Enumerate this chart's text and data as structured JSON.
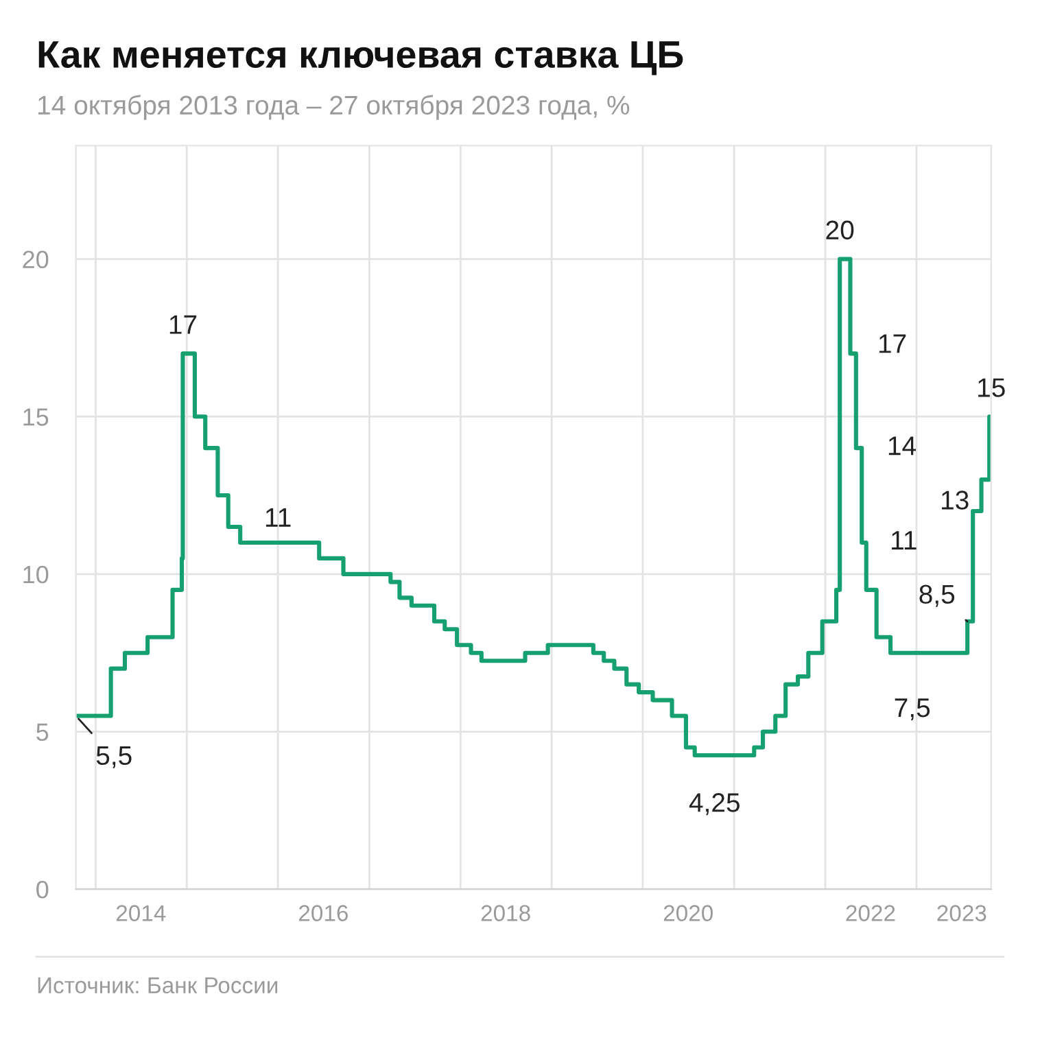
{
  "chart_data": {
    "type": "step",
    "title": "Как меняется ключевая ставка ЦБ",
    "subtitle": "14 октября 2013 года – 27 октября 2023 года, %",
    "x": [
      "2013-10-14",
      "2014-03-03",
      "2014-04-28",
      "2014-07-28",
      "2014-11-05",
      "2014-12-12",
      "2014-12-16",
      "2015-02-02",
      "2015-03-16",
      "2015-05-05",
      "2015-06-16",
      "2015-08-03",
      "2016-06-14",
      "2016-09-19",
      "2017-03-27",
      "2017-05-02",
      "2017-06-19",
      "2017-09-18",
      "2017-10-30",
      "2017-12-18",
      "2018-02-12",
      "2018-03-26",
      "2018-09-17",
      "2018-12-17",
      "2019-06-17",
      "2019-07-29",
      "2019-09-09",
      "2019-10-28",
      "2019-12-16",
      "2020-02-10",
      "2020-04-27",
      "2020-06-22",
      "2020-07-27",
      "2021-03-22",
      "2021-04-26",
      "2021-06-15",
      "2021-07-26",
      "2021-09-13",
      "2021-10-25",
      "2021-12-20",
      "2022-02-14",
      "2022-02-28",
      "2022-04-11",
      "2022-05-04",
      "2022-05-27",
      "2022-06-14",
      "2022-07-25",
      "2022-09-19",
      "2023-07-24",
      "2023-08-15",
      "2023-09-18",
      "2023-10-20",
      "2023-10-27"
    ],
    "series": [
      {
        "color": "#17a06f",
        "values": [
          5.5,
          7,
          7.5,
          8,
          9.5,
          10.5,
          17,
          15,
          14,
          12.5,
          11.5,
          11,
          10.5,
          10,
          9.75,
          9.25,
          9,
          8.5,
          8.25,
          7.75,
          7.5,
          7.25,
          7.5,
          7.75,
          7.5,
          7.25,
          7,
          6.5,
          6.25,
          6,
          5.5,
          4.5,
          4.25,
          4.5,
          5,
          5.5,
          6.5,
          6.75,
          7.5,
          8.5,
          9.5,
          20,
          17,
          14,
          11,
          9.5,
          8,
          7.5,
          8.5,
          12,
          13,
          15,
          15
        ]
      }
    ],
    "xlim": [
      "2013-10-14",
      "2023-10-27"
    ],
    "xticks": [
      {
        "value": "2014-01-01",
        "label": null
      },
      {
        "value": "2015-01-01",
        "label": null
      },
      {
        "value": "2016-01-01",
        "label": null
      },
      {
        "value": "2017-01-01",
        "label": null
      },
      {
        "value": "2018-01-01",
        "label": null
      },
      {
        "value": "2019-01-01",
        "label": null
      },
      {
        "value": "2020-01-01",
        "label": null
      },
      {
        "value": "2021-01-01",
        "label": null
      },
      {
        "value": "2022-01-01",
        "label": null
      },
      {
        "value": "2023-01-01",
        "label": null
      },
      {
        "value": "2014-07-01",
        "label": "2014"
      },
      {
        "value": "2016-07-01",
        "label": "2016"
      },
      {
        "value": "2018-07-01",
        "label": "2018"
      },
      {
        "value": "2020-07-01",
        "label": "2020"
      },
      {
        "value": "2022-07-01",
        "label": "2022"
      },
      {
        "value": "2023-07-01",
        "label": "2023"
      }
    ],
    "ylim": [
      0,
      23.6
    ],
    "yticks": [
      0,
      5,
      10,
      15,
      20
    ],
    "grid": true,
    "legend": false,
    "marker": "none",
    "line_style": "solid",
    "annotations": [
      {
        "text": "5,5",
        "x": "2013-10-14",
        "y": 5.5
      },
      {
        "text": "17",
        "x": "2014-12-16",
        "y": 17
      },
      {
        "text": "11",
        "x": "2016-01-01",
        "y": 11
      },
      {
        "text": "4,25",
        "x": "2020-10-15",
        "y": 4.25
      },
      {
        "text": "20",
        "x": "2022-02-28",
        "y": 20
      },
      {
        "text": "17",
        "x": "2022-04-11",
        "y": 17
      },
      {
        "text": "14",
        "x": "2022-05-04",
        "y": 14
      },
      {
        "text": "11",
        "x": "2022-05-27",
        "y": 11
      },
      {
        "text": "7,5",
        "x": "2022-12-15",
        "y": 7.5
      },
      {
        "text": "8,5",
        "x": "2023-07-24",
        "y": 8.5
      },
      {
        "text": "13",
        "x": "2023-09-18",
        "y": 13
      },
      {
        "text": "15",
        "x": "2023-10-27",
        "y": 15
      },
      "Источник: Банк России"
    ]
  }
}
